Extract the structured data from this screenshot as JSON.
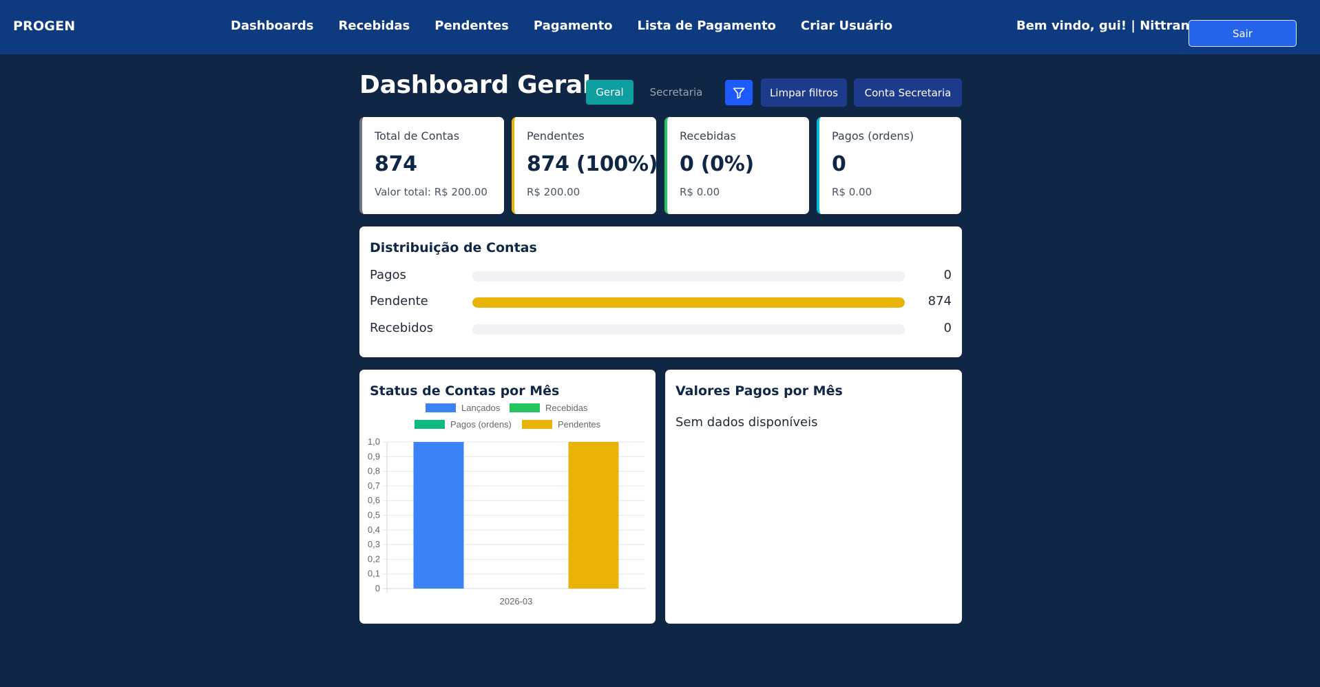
{
  "navbar": {
    "brand": "PROGEN",
    "links": [
      "Dashboards",
      "Recebidas",
      "Pendentes",
      "Pagamento",
      "Lista de Pagamento",
      "Criar Usuário"
    ],
    "welcome": "Bem vindo, gui! | Nittrans",
    "logout_label": "Sair"
  },
  "header": {
    "title": "Dashboard Geral",
    "tab_geral": "Geral",
    "tab_secretaria": "Secretaria",
    "filter_icon": "funnel-icon",
    "clear_filters_label": "Limpar filtros",
    "secretaria_account_label": "Conta Secretaria"
  },
  "stats": [
    {
      "label": "Total de Contas",
      "value": "874",
      "sub": "Valor total: R$ 200.00",
      "accent": "#6b7280"
    },
    {
      "label": "Pendentes",
      "value": "874 (100%)",
      "sub": "R$ 200.00",
      "accent": "#eab308"
    },
    {
      "label": "Recebidas",
      "value": "0 (0%)",
      "sub": "R$ 0.00",
      "accent": "#22c55e"
    },
    {
      "label": "Pagos (ordens)",
      "value": "0",
      "sub": "R$ 0.00",
      "accent": "#06b6d4"
    }
  ],
  "distribution": {
    "title": "Distribuição de Contas",
    "rows": [
      {
        "label": "Pagos",
        "count": "0",
        "fraction": 0,
        "color": "#eab308"
      },
      {
        "label": "Pendente",
        "count": "874",
        "fraction": 1,
        "color": "#eab308"
      },
      {
        "label": "Recebidos",
        "count": "0",
        "fraction": 0,
        "color": "#eab308"
      }
    ]
  },
  "status_chart": {
    "title": "Status de Contas por Mês"
  },
  "values_panel": {
    "title": "Valores Pagos por Mês",
    "empty_text": "Sem dados disponíveis"
  },
  "colors": {
    "background": "#0f2744",
    "navbar": "#0e3a80",
    "lancados": "#3b82f6",
    "recebidas": "#22c55e",
    "pagos": "#10b981",
    "pendentes": "#eab308"
  },
  "chart_data": {
    "type": "bar",
    "title": "Status de Contas por Mês",
    "categories": [
      "2026-03"
    ],
    "series": [
      {
        "name": "Lançados",
        "values": [
          1.0
        ],
        "color": "#3b82f6"
      },
      {
        "name": "Recebidas",
        "values": [
          0
        ],
        "color": "#22c55e"
      },
      {
        "name": "Pagos (ordens)",
        "values": [
          0
        ],
        "color": "#10b981"
      },
      {
        "name": "Pendentes",
        "values": [
          1.0
        ],
        "color": "#eab308"
      }
    ],
    "ylim": [
      0,
      1.0
    ],
    "yticks": [
      "0",
      "0,1",
      "0,2",
      "0,3",
      "0,4",
      "0,5",
      "0,6",
      "0,7",
      "0,8",
      "0,9",
      "1,0"
    ],
    "grid": true,
    "legend_position": "top"
  }
}
